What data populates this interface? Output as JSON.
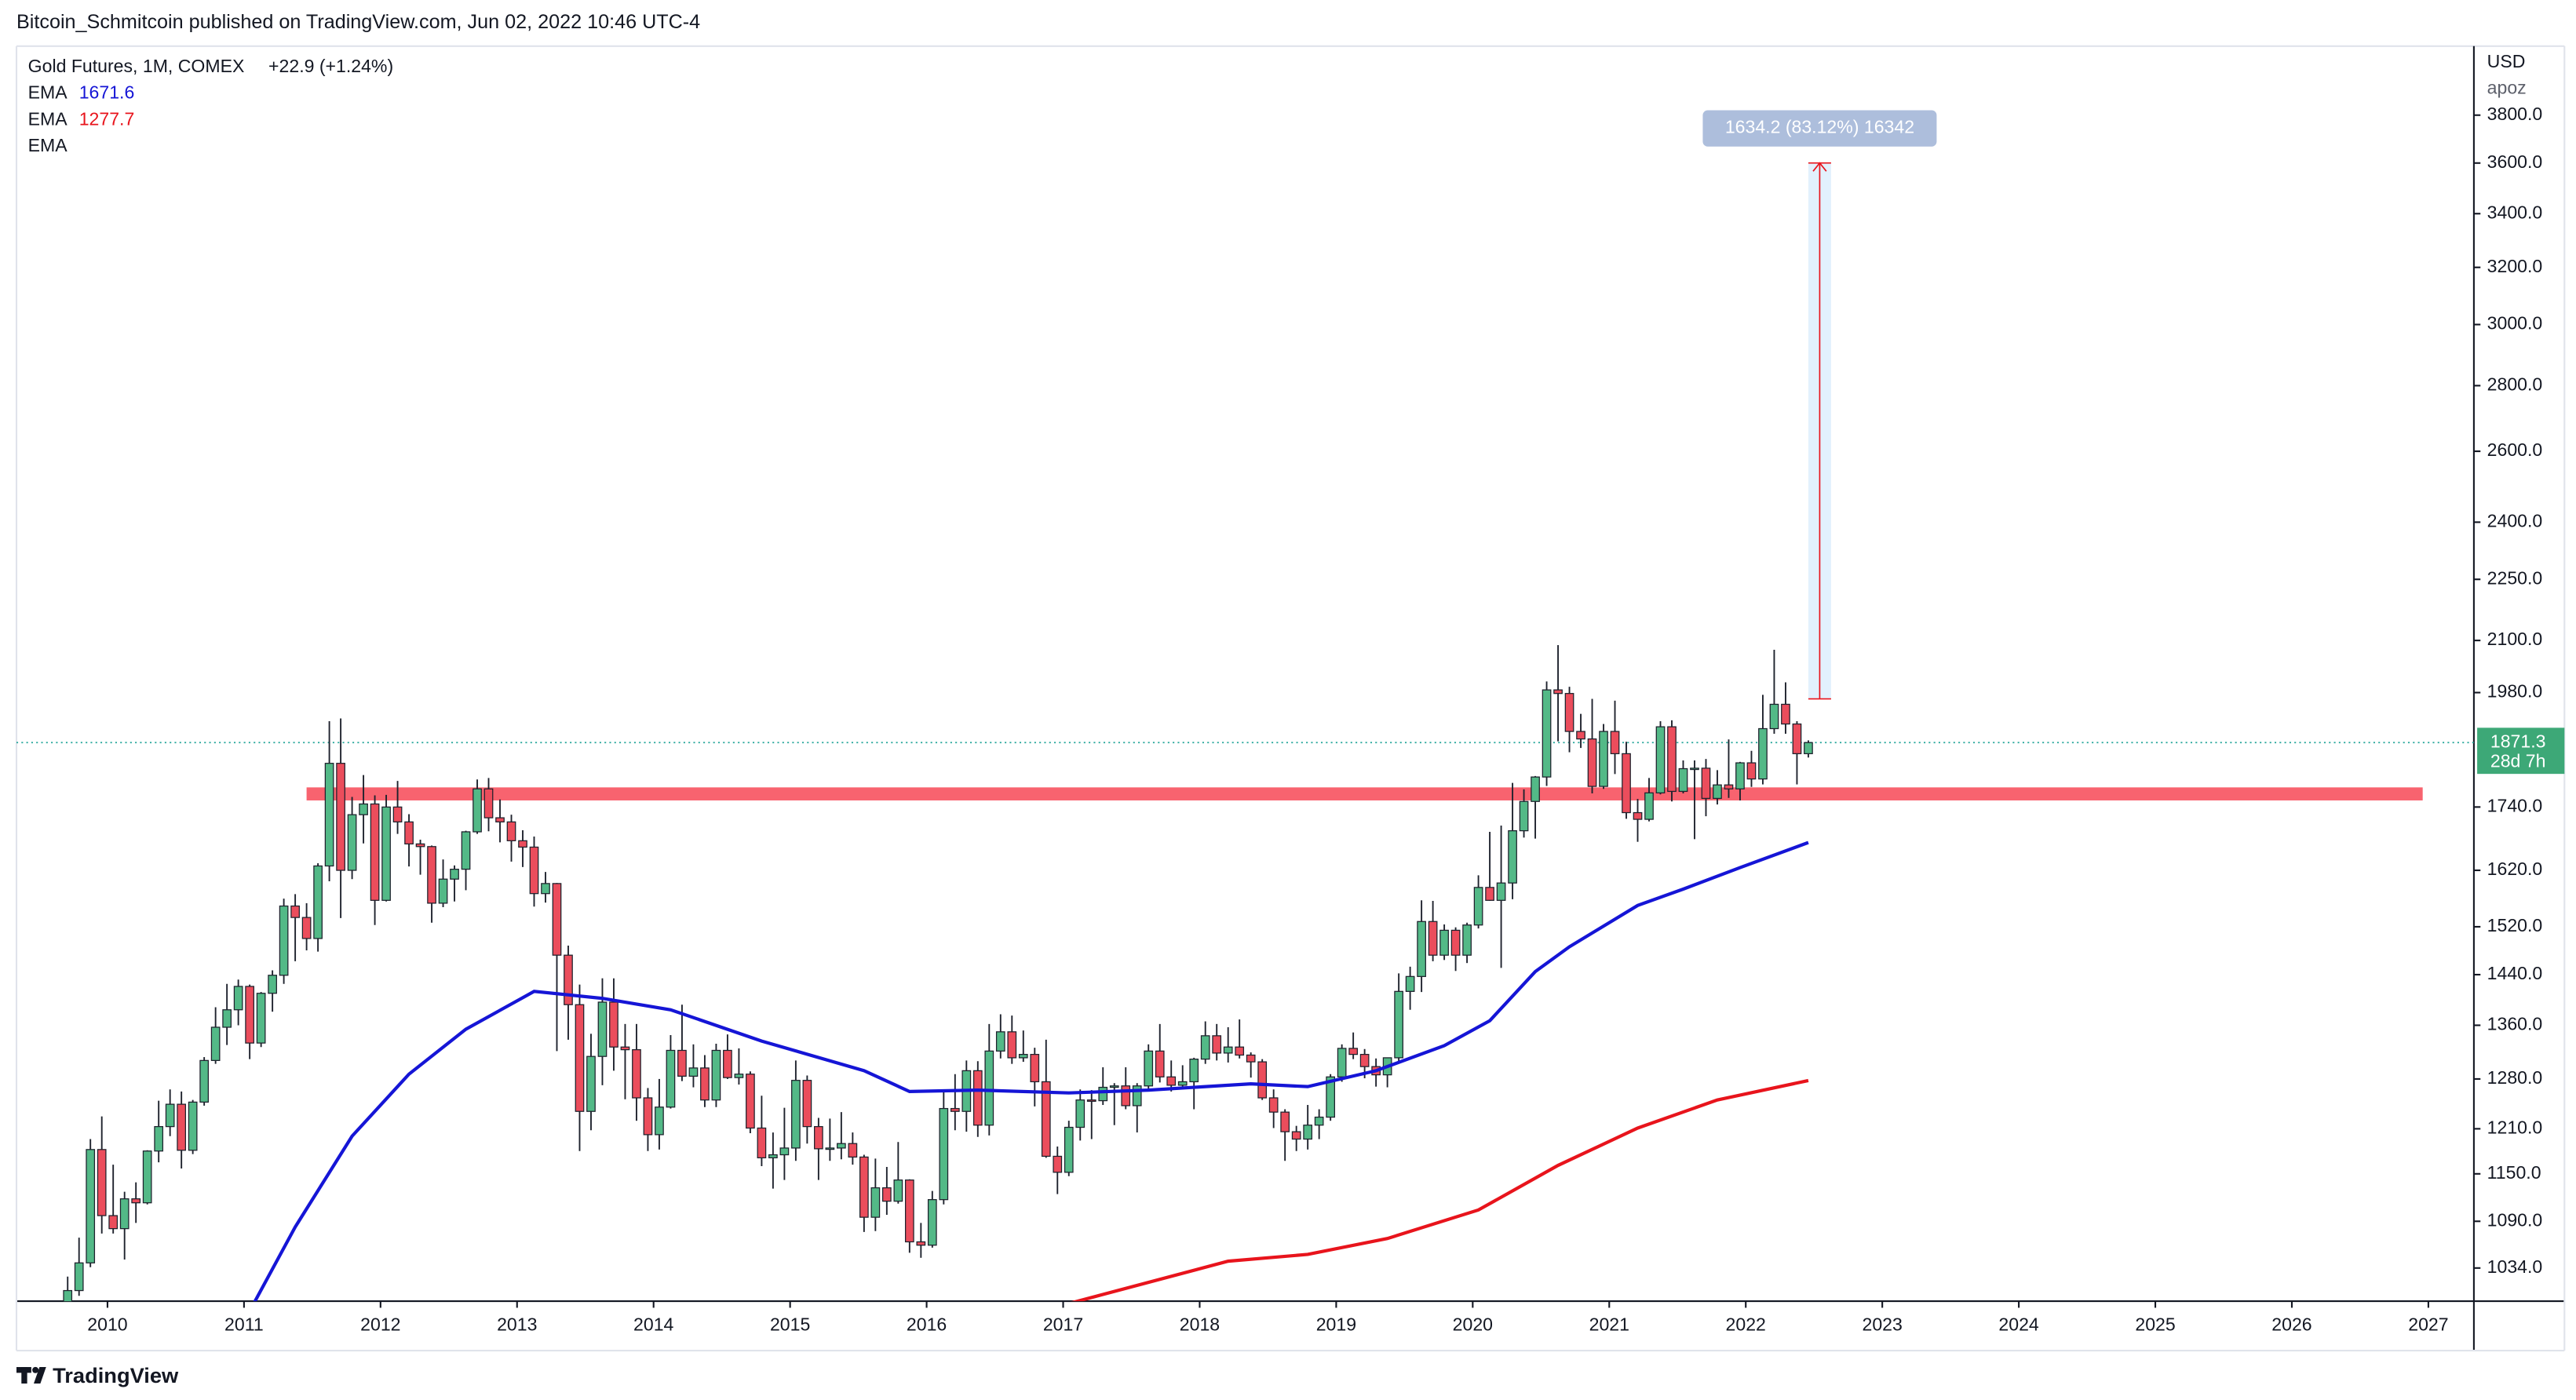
{
  "header": {
    "publisher": "Bitcoin_Schmitcoin published on TradingView.com, Jun 02, 2022 10:46 UTC-4"
  },
  "chart_data": {
    "type": "candlestick",
    "title": "Gold Futures, 1M, COMEX",
    "change": "+22.9 (+1.24%)",
    "x": [
      "2009-09",
      "2009-10",
      "2009-11",
      "2009-12",
      "2010-01",
      "2010-02",
      "2010-03",
      "2010-04",
      "2010-05",
      "2010-06",
      "2010-07",
      "2010-08",
      "2010-09",
      "2010-10",
      "2010-11",
      "2010-12",
      "2011-01",
      "2011-02",
      "2011-03",
      "2011-04",
      "2011-05",
      "2011-06",
      "2011-07",
      "2011-08",
      "2011-09",
      "2011-10",
      "2011-11",
      "2011-12",
      "2012-01",
      "2012-02",
      "2012-03",
      "2012-04",
      "2012-05",
      "2012-06",
      "2012-07",
      "2012-08",
      "2012-09",
      "2012-10",
      "2012-11",
      "2012-12",
      "2013-01",
      "2013-02",
      "2013-03",
      "2013-04",
      "2013-05",
      "2013-06",
      "2013-07",
      "2013-08",
      "2013-09",
      "2013-10",
      "2013-11",
      "2013-12",
      "2014-01",
      "2014-02",
      "2014-03",
      "2014-04",
      "2014-05",
      "2014-06",
      "2014-07",
      "2014-08",
      "2014-09",
      "2014-10",
      "2014-11",
      "2014-12",
      "2015-01",
      "2015-02",
      "2015-03",
      "2015-04",
      "2015-05",
      "2015-06",
      "2015-07",
      "2015-08",
      "2015-09",
      "2015-10",
      "2015-11",
      "2015-12",
      "2016-01",
      "2016-02",
      "2016-03",
      "2016-04",
      "2016-05",
      "2016-06",
      "2016-07",
      "2016-08",
      "2016-09",
      "2016-10",
      "2016-11",
      "2016-12",
      "2017-01",
      "2017-02",
      "2017-03",
      "2017-04",
      "2017-05",
      "2017-06",
      "2017-07",
      "2017-08",
      "2017-09",
      "2017-10",
      "2017-11",
      "2017-12",
      "2018-01",
      "2018-02",
      "2018-03",
      "2018-04",
      "2018-05",
      "2018-06",
      "2018-07",
      "2018-08",
      "2018-09",
      "2018-10",
      "2018-11",
      "2018-12",
      "2019-01",
      "2019-02",
      "2019-03",
      "2019-04",
      "2019-05",
      "2019-06",
      "2019-07",
      "2019-08",
      "2019-09",
      "2019-10",
      "2019-11",
      "2019-12",
      "2020-01",
      "2020-02",
      "2020-03",
      "2020-04",
      "2020-05",
      "2020-06",
      "2020-07",
      "2020-08",
      "2020-09",
      "2020-10",
      "2020-11",
      "2020-12",
      "2021-01",
      "2021-02",
      "2021-03",
      "2021-04",
      "2021-05",
      "2021-06",
      "2021-07",
      "2021-08",
      "2021-09",
      "2021-10",
      "2021-11",
      "2021-12",
      "2022-01",
      "2022-02",
      "2022-03",
      "2022-04",
      "2022-05",
      "2022-06"
    ],
    "open": [
      953,
      1008,
      1040,
      1182,
      1097,
      1081,
      1118,
      1113,
      1180,
      1213,
      1244,
      1181,
      1247,
      1307,
      1357,
      1384,
      1421,
      1333,
      1410,
      1439,
      1556,
      1536,
      1500,
      1628,
      1828,
      1620,
      1725,
      1746,
      1566,
      1740,
      1711,
      1669,
      1664,
      1561,
      1604,
      1622,
      1692,
      1776,
      1719,
      1711,
      1675,
      1663,
      1578,
      1596,
      1472,
      1392,
      1234,
      1313,
      1396,
      1327,
      1323,
      1253,
      1202,
      1240,
      1322,
      1284,
      1296,
      1250,
      1322,
      1282,
      1287,
      1211,
      1171,
      1175,
      1184,
      1278,
      1213,
      1183,
      1184,
      1190,
      1172,
      1095,
      1132,
      1115,
      1142,
      1065,
      1061,
      1117,
      1238,
      1234,
      1292,
      1215,
      1321,
      1350,
      1311,
      1316,
      1276,
      1173,
      1152,
      1212,
      1250,
      1249,
      1268,
      1270,
      1242,
      1270,
      1321,
      1283,
      1271,
      1276,
      1309,
      1344,
      1318,
      1327,
      1315,
      1305,
      1253,
      1233,
      1206,
      1196,
      1215,
      1226,
      1283,
      1325,
      1316,
      1298,
      1286,
      1311,
      1413,
      1437,
      1529,
      1472,
      1514,
      1472,
      1523,
      1589,
      1566,
      1597,
      1694,
      1751,
      1800,
      1986,
      1978,
      1895,
      1879,
      1781,
      1895,
      1848,
      1729,
      1716,
      1768,
      1905,
      1771,
      1817,
      1818,
      1757,
      1784,
      1776,
      1829,
      1796,
      1901,
      1954,
      1911,
      1848
    ],
    "high": [
      1024,
      1070,
      1196,
      1227,
      1162,
      1127,
      1139,
      1181,
      1249,
      1265,
      1262,
      1250,
      1312,
      1388,
      1425,
      1432,
      1424,
      1412,
      1447,
      1569,
      1577,
      1561,
      1633,
      1917,
      1923,
      1760,
      1804,
      1763,
      1764,
      1792,
      1726,
      1677,
      1666,
      1640,
      1629,
      1694,
      1795,
      1798,
      1755,
      1725,
      1695,
      1683,
      1617,
      1597,
      1488,
      1424,
      1347,
      1434,
      1434,
      1362,
      1362,
      1267,
      1280,
      1345,
      1392,
      1331,
      1315,
      1332,
      1346,
      1325,
      1291,
      1256,
      1205,
      1239,
      1307,
      1285,
      1225,
      1224,
      1233,
      1205,
      1175,
      1170,
      1159,
      1192,
      1143,
      1088,
      1128,
      1263,
      1287,
      1307,
      1306,
      1362,
      1377,
      1375,
      1352,
      1326,
      1338,
      1186,
      1221,
      1265,
      1264,
      1297,
      1274,
      1297,
      1274,
      1331,
      1362,
      1307,
      1300,
      1311,
      1366,
      1362,
      1357,
      1369,
      1319,
      1309,
      1265,
      1237,
      1214,
      1243,
      1237,
      1287,
      1331,
      1349,
      1324,
      1310,
      1311,
      1442,
      1453,
      1566,
      1565,
      1524,
      1519,
      1527,
      1611,
      1692,
      1704,
      1788,
      1775,
      1802,
      2005,
      2089,
      1993,
      1933,
      1966,
      1911,
      1962,
      1873,
      1756,
      1798,
      1917,
      1919,
      1834,
      1834,
      1837,
      1814,
      1878,
      1831,
      1854,
      1975,
      2078,
      2003,
      1917,
      1876
    ],
    "low": [
      931,
      1002,
      1035,
      1075,
      1075,
      1044,
      1088,
      1111,
      1165,
      1200,
      1157,
      1176,
      1242,
      1302,
      1330,
      1360,
      1309,
      1327,
      1381,
      1425,
      1462,
      1480,
      1478,
      1600,
      1535,
      1604,
      1670,
      1523,
      1564,
      1688,
      1627,
      1612,
      1527,
      1554,
      1564,
      1584,
      1688,
      1693,
      1672,
      1636,
      1626,
      1555,
      1562,
      1321,
      1338,
      1180,
      1208,
      1271,
      1292,
      1251,
      1221,
      1180,
      1182,
      1238,
      1277,
      1268,
      1240,
      1240,
      1280,
      1272,
      1204,
      1160,
      1131,
      1142,
      1167,
      1190,
      1142,
      1167,
      1169,
      1162,
      1077,
      1078,
      1098,
      1112,
      1052,
      1046,
      1058,
      1111,
      1208,
      1206,
      1199,
      1201,
      1310,
      1302,
      1305,
      1241,
      1171,
      1124,
      1147,
      1194,
      1196,
      1243,
      1215,
      1237,
      1205,
      1262,
      1275,
      1262,
      1265,
      1237,
      1302,
      1307,
      1304,
      1310,
      1282,
      1250,
      1211,
      1167,
      1180,
      1182,
      1196,
      1221,
      1276,
      1309,
      1281,
      1269,
      1268,
      1306,
      1384,
      1412,
      1462,
      1464,
      1446,
      1459,
      1517,
      1565,
      1451,
      1568,
      1681,
      1679,
      1782,
      1874,
      1851,
      1860,
      1767,
      1776,
      1806,
      1717,
      1673,
      1712,
      1765,
      1751,
      1767,
      1678,
      1722,
      1745,
      1758,
      1753,
      1780,
      1785,
      1890,
      1890,
      1785,
      1840
    ],
    "close": [
      1008,
      1040,
      1182,
      1097,
      1081,
      1118,
      1113,
      1180,
      1213,
      1244,
      1181,
      1247,
      1307,
      1357,
      1384,
      1421,
      1333,
      1410,
      1439,
      1556,
      1536,
      1500,
      1628,
      1828,
      1620,
      1725,
      1746,
      1566,
      1740,
      1711,
      1669,
      1664,
      1561,
      1604,
      1622,
      1692,
      1776,
      1719,
      1711,
      1675,
      1663,
      1578,
      1596,
      1472,
      1392,
      1234,
      1313,
      1396,
      1327,
      1323,
      1253,
      1202,
      1240,
      1322,
      1284,
      1296,
      1250,
      1322,
      1282,
      1287,
      1211,
      1171,
      1175,
      1184,
      1278,
      1213,
      1183,
      1184,
      1190,
      1172,
      1095,
      1132,
      1115,
      1142,
      1065,
      1061,
      1117,
      1238,
      1234,
      1292,
      1215,
      1321,
      1350,
      1311,
      1316,
      1276,
      1173,
      1152,
      1212,
      1250,
      1249,
      1268,
      1270,
      1242,
      1270,
      1321,
      1283,
      1271,
      1276,
      1309,
      1344,
      1318,
      1327,
      1315,
      1305,
      1253,
      1233,
      1206,
      1196,
      1215,
      1226,
      1283,
      1325,
      1316,
      1298,
      1286,
      1311,
      1413,
      1437,
      1529,
      1472,
      1514,
      1472,
      1523,
      1589,
      1566,
      1597,
      1694,
      1751,
      1800,
      1986,
      1978,
      1895,
      1879,
      1781,
      1895,
      1848,
      1729,
      1716,
      1768,
      1905,
      1771,
      1817,
      1818,
      1757,
      1784,
      1776,
      1829,
      1796,
      1901,
      1954,
      1911,
      1848,
      1871.3
    ],
    "up_color": "#53b987",
    "down_color": "#eb4d5c",
    "wick_color": "#1e222d",
    "countdown": "28d 7h",
    "series": [
      {
        "name": "EMA",
        "color": "#1515d6",
        "x": [
          "2011-01",
          "2011-05",
          "2011-10",
          "2012-03",
          "2012-08",
          "2013-02",
          "2013-08",
          "2014-02",
          "2014-10",
          "2015-07",
          "2015-11",
          "2016-05",
          "2017-01",
          "2017-08",
          "2018-05",
          "2018-10",
          "2019-04",
          "2019-10",
          "2020-02",
          "2020-06",
          "2020-09",
          "2021-03",
          "2021-07",
          "2021-12",
          "2022-06"
        ],
        "values": [
          985,
          1083,
          1200,
          1287,
          1354,
          1413,
          1402,
          1384,
          1336,
          1292,
          1262,
          1264,
          1260,
          1264,
          1273,
          1269,
          1292,
          1329,
          1367,
          1445,
          1486,
          1557,
          1586,
          1625,
          1671.6
        ]
      },
      {
        "name": "EMA",
        "color": "#e8141c",
        "x": [
          "2016-12",
          "2018-03",
          "2018-10",
          "2019-05",
          "2020-01",
          "2020-08",
          "2021-03",
          "2021-10",
          "2022-06"
        ],
        "values": [
          990,
          1042,
          1050,
          1069,
          1104,
          1161,
          1211,
          1250,
          1277.7
        ]
      },
      {
        "name": "EMA"
      }
    ],
    "zone": {
      "from": 1753,
      "to": 1779,
      "x": [
        "2011-06",
        "2026-12"
      ],
      "color": "#f7525f"
    },
    "measure": {
      "from": 1966,
      "to": 3600.2,
      "x": [
        "2022-06",
        "2022-08"
      ],
      "label": "1634.2 (83.12%) 16342"
    },
    "ylim": [
      996,
      4108
    ],
    "log_scale": true,
    "y_unit": "USD",
    "y_note": "apoz",
    "yticks": [
      {
        "value": 1034,
        "label": "1034.0"
      },
      {
        "value": 1090,
        "label": "1090.0"
      },
      {
        "value": 1150,
        "label": "1150.0"
      },
      {
        "value": 1210,
        "label": "1210.0"
      },
      {
        "value": 1280,
        "label": "1280.0"
      },
      {
        "value": 1360,
        "label": "1360.0"
      },
      {
        "value": 1440,
        "label": "1440.0"
      },
      {
        "value": 1520,
        "label": "1520.0"
      },
      {
        "value": 1620,
        "label": "1620.0"
      },
      {
        "value": 1740,
        "label": "1740.0"
      },
      {
        "value": 1980,
        "label": "1980.0"
      },
      {
        "value": 2100,
        "label": "2100.0"
      },
      {
        "value": 2250,
        "label": "2250.0"
      },
      {
        "value": 2400,
        "label": "2400.0"
      },
      {
        "value": 2600,
        "label": "2600.0"
      },
      {
        "value": 2800,
        "label": "2800.0"
      },
      {
        "value": 3000,
        "label": "3000.0"
      },
      {
        "value": 3200,
        "label": "3200.0"
      },
      {
        "value": 3400,
        "label": "3400.0"
      },
      {
        "value": 3600,
        "label": "3600.0"
      },
      {
        "value": 3800,
        "label": "3800.0"
      }
    ],
    "xlim": [
      "2009-05",
      "2027-05"
    ],
    "xticks": [
      2010,
      2011,
      2012,
      2013,
      2014,
      2015,
      2016,
      2017,
      2018,
      2019,
      2020,
      2021,
      2022,
      2023,
      2024,
      2025,
      2026,
      2027
    ]
  },
  "footer": {
    "brand": "TradingView"
  }
}
